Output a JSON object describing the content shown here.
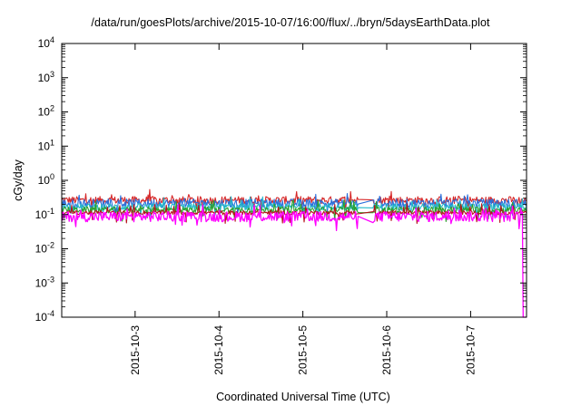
{
  "chart_data": {
    "type": "line",
    "title": "/data/run/goesPlots/archive/2015-10-07/16:00/flux/../bryn/5daysEarthData.plot",
    "xlabel": "Coordinated Universal Time (UTC)",
    "ylabel": "cGy/day",
    "y_scale": "log",
    "ylim": [
      0.0001,
      10000
    ],
    "xlim": [
      "2015-10-02T03:00",
      "2015-10-07T16:00"
    ],
    "y_tick_labels": [
      {
        "base": "10",
        "exp": "-4",
        "value": 0.0001
      },
      {
        "base": "10",
        "exp": "-3",
        "value": 0.001
      },
      {
        "base": "10",
        "exp": "-2",
        "value": 0.01
      },
      {
        "base": "10",
        "exp": "-1",
        "value": 0.1
      },
      {
        "base": "10",
        "exp": "0",
        "value": 1
      },
      {
        "base": "10",
        "exp": "1",
        "value": 10
      },
      {
        "base": "10",
        "exp": "2",
        "value": 100
      },
      {
        "base": "10",
        "exp": "3",
        "value": 1000
      },
      {
        "base": "10",
        "exp": "4",
        "value": 10000
      }
    ],
    "x_tick_labels": [
      {
        "label": "2015-10-3",
        "value": "2015-10-03T00:00"
      },
      {
        "label": "2015-10-4",
        "value": "2015-10-04T00:00"
      },
      {
        "label": "2015-10-5",
        "value": "2015-10-05T00:00"
      },
      {
        "label": "2015-10-6",
        "value": "2015-10-06T00:00"
      },
      {
        "label": "2015-10-7",
        "value": "2015-10-07T00:00"
      }
    ],
    "grid": false,
    "series": [
      {
        "color": "#d62728",
        "baseline": 0.27,
        "spread": 0.22
      },
      {
        "color": "#2a6fdb",
        "baseline": 0.22,
        "spread": 0.25
      },
      {
        "color": "#23b9c9",
        "baseline": 0.17,
        "spread": 0.2
      },
      {
        "color": "#2ca02c",
        "baseline": 0.14,
        "spread": 0.18
      },
      {
        "color": "#b5121b",
        "baseline": 0.115,
        "spread": 0.12
      },
      {
        "color": "#ff00ff",
        "baseline": 0.09,
        "spread": 0.3
      }
    ],
    "data_gap": {
      "start": "2015-10-05T16:00",
      "end": "2015-10-05T20:00"
    },
    "final_drop": {
      "series_color": "#ff00ff",
      "time": "2015-10-07T15:00",
      "value": 0.0001
    }
  }
}
